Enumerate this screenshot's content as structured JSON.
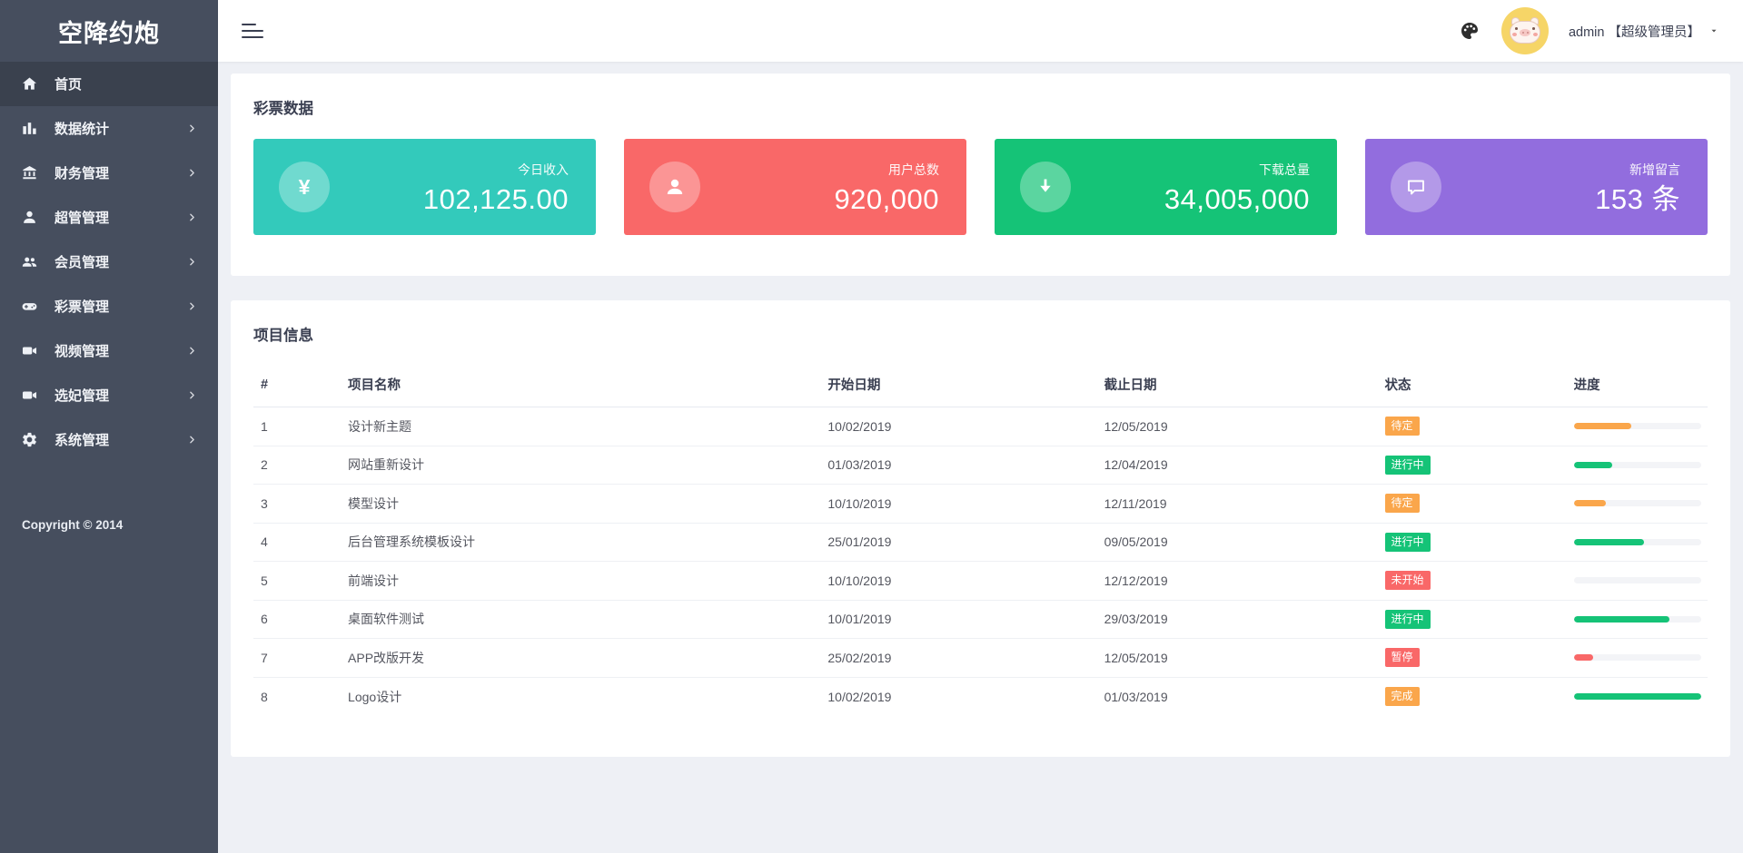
{
  "app": {
    "title": "空降约炮",
    "copyright": "Copyright © 2014"
  },
  "colors": {
    "primary": "#33cabb",
    "danger": "#f96868",
    "success": "#15c377",
    "purple": "#926dde",
    "warning": "#faa64b"
  },
  "header": {
    "user_label": "admin 【超级管理员】"
  },
  "sidebar": {
    "items": [
      {
        "icon": "home",
        "label": "首页",
        "active": true,
        "has_children": false
      },
      {
        "icon": "chart-bar",
        "label": "数据统计",
        "active": false,
        "has_children": true
      },
      {
        "icon": "bank",
        "label": "财务管理",
        "active": false,
        "has_children": true
      },
      {
        "icon": "user",
        "label": "超管管理",
        "active": false,
        "has_children": true
      },
      {
        "icon": "users",
        "label": "会员管理",
        "active": false,
        "has_children": true
      },
      {
        "icon": "gamepad",
        "label": "彩票管理",
        "active": false,
        "has_children": true
      },
      {
        "icon": "video",
        "label": "视频管理",
        "active": false,
        "has_children": true
      },
      {
        "icon": "video",
        "label": "选妃管理",
        "active": false,
        "has_children": true
      },
      {
        "icon": "gear",
        "label": "系统管理",
        "active": false,
        "has_children": true
      }
    ]
  },
  "panels": {
    "stats": {
      "title": "彩票数据",
      "cards": [
        {
          "icon": "yen",
          "label": "今日收入",
          "value": "102,125.00",
          "color": "primary"
        },
        {
          "icon": "person",
          "label": "用户总数",
          "value": "920,000",
          "color": "danger"
        },
        {
          "icon": "download",
          "label": "下载总量",
          "value": "34,005,000",
          "color": "success"
        },
        {
          "icon": "comment",
          "label": "新增留言",
          "value": "153 条",
          "color": "purple"
        }
      ]
    },
    "projects": {
      "title": "项目信息",
      "columns": [
        "#",
        "项目名称",
        "开始日期",
        "截止日期",
        "状态",
        "进度"
      ],
      "rows": [
        {
          "num": "1",
          "name": "设计新主题",
          "start": "10/02/2019",
          "end": "12/05/2019",
          "status": "待定",
          "status_color": "warning",
          "progress": 45,
          "progress_color": "warning"
        },
        {
          "num": "2",
          "name": "网站重新设计",
          "start": "01/03/2019",
          "end": "12/04/2019",
          "status": "进行中",
          "status_color": "success",
          "progress": 30,
          "progress_color": "success"
        },
        {
          "num": "3",
          "name": "模型设计",
          "start": "10/10/2019",
          "end": "12/11/2019",
          "status": "待定",
          "status_color": "warning",
          "progress": 25,
          "progress_color": "warning"
        },
        {
          "num": "4",
          "name": "后台管理系统模板设计",
          "start": "25/01/2019",
          "end": "09/05/2019",
          "status": "进行中",
          "status_color": "success",
          "progress": 55,
          "progress_color": "success"
        },
        {
          "num": "5",
          "name": "前端设计",
          "start": "10/10/2019",
          "end": "12/12/2019",
          "status": "未开始",
          "status_color": "danger",
          "progress": 0,
          "progress_color": "danger"
        },
        {
          "num": "6",
          "name": "桌面软件测试",
          "start": "10/01/2019",
          "end": "29/03/2019",
          "status": "进行中",
          "status_color": "success",
          "progress": 75,
          "progress_color": "success"
        },
        {
          "num": "7",
          "name": "APP改版开发",
          "start": "25/02/2019",
          "end": "12/05/2019",
          "status": "暂停",
          "status_color": "danger",
          "progress": 15,
          "progress_color": "danger"
        },
        {
          "num": "8",
          "name": "Logo设计",
          "start": "10/02/2019",
          "end": "01/03/2019",
          "status": "完成",
          "status_color": "warning",
          "progress": 100,
          "progress_color": "success"
        }
      ]
    }
  }
}
